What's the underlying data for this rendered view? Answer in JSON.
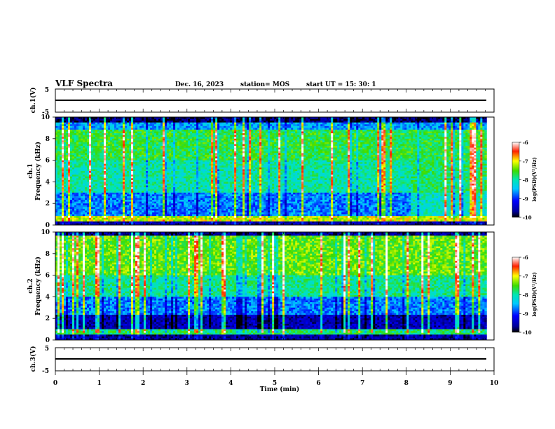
{
  "header": {
    "title": "VLF Spectra",
    "date": "Dec. 16, 2023",
    "station": "station= MOS",
    "start": "start  UT =   15: 30: 1"
  },
  "chart_data": {
    "type": "heatmap",
    "xlabel": "Time  (min)",
    "xlim": [
      0,
      10
    ],
    "x_ticks": [
      "0",
      "1",
      "2",
      "3",
      "4",
      "5",
      "6",
      "7",
      "8",
      "9",
      "10"
    ],
    "data_end_min": 9.83,
    "panels": [
      {
        "id": "ch1-waveform",
        "kind": "waveform",
        "ylabel": "ch.1(V)",
        "ylim": [
          -5,
          5
        ],
        "y_ticks": [
          "5",
          "-5"
        ],
        "baseline": 0
      },
      {
        "id": "ch1-spectrogram",
        "kind": "spectrogram",
        "ylabel": "ch.1\nFrequency  (kHz)",
        "ylim": [
          0,
          10
        ],
        "y_ticks": [
          "0",
          "2",
          "4",
          "6",
          "8",
          "10"
        ],
        "colorbar": {
          "label": "log(PSD)(V²/Hz)",
          "range": [
            -10,
            -6
          ],
          "ticks": [
            "-6",
            "-7",
            "-8",
            "-9",
            "-10"
          ]
        }
      },
      {
        "id": "ch2-spectrogram",
        "kind": "spectrogram",
        "ylabel": "ch.2\nFrequency  (kHz)",
        "ylim": [
          0,
          10
        ],
        "y_ticks": [
          "0",
          "2",
          "4",
          "6",
          "8",
          "10"
        ],
        "colorbar": {
          "label": "log(PSD)(V²/Hz)",
          "range": [
            -10,
            -6
          ],
          "ticks": [
            "-6",
            "-7",
            "-8",
            "-9",
            "-10"
          ]
        }
      },
      {
        "id": "ch3-waveform",
        "kind": "waveform",
        "ylabel": "ch.3(V)",
        "ylim": [
          -5,
          5
        ],
        "y_ticks": [
          "5",
          "-5"
        ],
        "baseline": 0
      }
    ]
  }
}
